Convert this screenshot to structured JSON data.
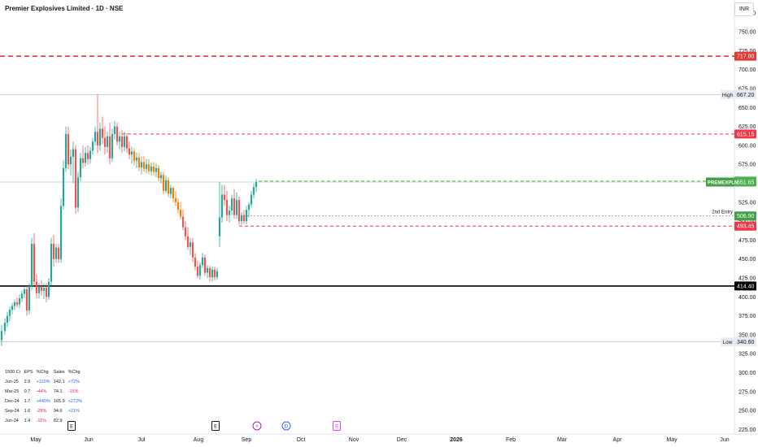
{
  "header": {
    "title": "Premier Explosives Limited · 1D · NSE",
    "currency": "INR"
  },
  "fundamentals": {
    "headers": [
      "1500 Cr",
      "EPS",
      "%Chg",
      "Sales",
      "%Chg"
    ],
    "rows": [
      {
        "period": "Jun-25",
        "eps": "2.9",
        "eps_chg": "+110%",
        "sales": "142.1",
        "sales_chg": "+72%"
      },
      {
        "period": "Mar-25",
        "eps": "0.7",
        "eps_chg": "-44%",
        "sales": "74.1",
        "sales_chg": "-15%"
      },
      {
        "period": "Dec-24",
        "eps": "1.7",
        "eps_chg": "+440%",
        "sales": "165.9",
        "sales_chg": "+272%"
      },
      {
        "period": "Sep-24",
        "eps": "1.6",
        "eps_chg": "-28%",
        "sales": "94.6",
        "sales_chg": "+21%"
      },
      {
        "period": "Jun-24",
        "eps": "1.4",
        "eps_chg": "-11%",
        "sales": "82.9",
        "sales_chg": ""
      }
    ]
  },
  "chart_data": {
    "type": "candlestick",
    "title": "Premier Explosives Limited · 1D · NSE",
    "ylim": [
      219,
      792
    ],
    "y_ticks": [
      225,
      250,
      275,
      300,
      325,
      350,
      375,
      400,
      425,
      450,
      475,
      500,
      525,
      550,
      575,
      600,
      625,
      650,
      675,
      700,
      725,
      750,
      775
    ],
    "x_ticks": [
      {
        "label": "May",
        "x": 44
      },
      {
        "label": "Jun",
        "x": 109
      },
      {
        "label": "Jul",
        "x": 174
      },
      {
        "label": "Aug",
        "x": 244
      },
      {
        "label": "Sep",
        "x": 303
      },
      {
        "label": "Oct",
        "x": 370
      },
      {
        "label": "Nov",
        "x": 435
      },
      {
        "label": "Dec",
        "x": 494
      },
      {
        "label": "2026",
        "x": 561
      },
      {
        "label": "Feb",
        "x": 628
      },
      {
        "label": "Mar",
        "x": 691
      },
      {
        "label": "Apr",
        "x": 759
      },
      {
        "label": "May",
        "x": 826
      },
      {
        "label": "Jun",
        "x": 891
      }
    ],
    "levels": [
      {
        "label": "717.80",
        "value": 717.8,
        "color": "#e53935",
        "style": "dashed-thick"
      },
      {
        "label": "667.20",
        "value": 667.2,
        "color": "#9598a1",
        "style": "solid-thin",
        "tag": "High"
      },
      {
        "label": "615.15",
        "value": 615.15,
        "color": "#f23645",
        "style": "dashed",
        "start": 150
      },
      {
        "label": "552.90",
        "value": 552.9,
        "color": "#4caf50",
        "style": "dashed",
        "start": 318
      },
      {
        "label": "551.65",
        "value": 551.65,
        "color": "#4caf50",
        "style": "solid-thin",
        "tag": "PREMEXPLN"
      },
      {
        "label": "506.90",
        "value": 506.9,
        "color": "#9598a1",
        "style": "dotted",
        "start": 300,
        "tag": "2nd Entry"
      },
      {
        "label": "493.45",
        "value": 493.45,
        "color": "#f23645",
        "style": "dashed",
        "start": 294
      },
      {
        "label": "414.40",
        "value": 414.4,
        "color": "#000000",
        "style": "solid-thick"
      },
      {
        "label": "340.60",
        "value": 340.6,
        "color": "#9598a1",
        "style": "solid-thin",
        "tag": "Low"
      }
    ],
    "candles": [
      {
        "x": 2,
        "o": 343,
        "h": 363,
        "l": 335,
        "c": 355
      },
      {
        "x": 6,
        "o": 355,
        "h": 372,
        "l": 350,
        "c": 366
      },
      {
        "x": 9,
        "o": 366,
        "h": 380,
        "l": 360,
        "c": 375
      },
      {
        "x": 12,
        "o": 375,
        "h": 387,
        "l": 368,
        "c": 383
      },
      {
        "x": 15,
        "o": 383,
        "h": 392,
        "l": 377,
        "c": 388
      },
      {
        "x": 18,
        "o": 388,
        "h": 397,
        "l": 383,
        "c": 393
      },
      {
        "x": 21,
        "o": 393,
        "h": 399,
        "l": 386,
        "c": 390
      },
      {
        "x": 24,
        "o": 390,
        "h": 403,
        "l": 385,
        "c": 398
      },
      {
        "x": 27,
        "o": 398,
        "h": 408,
        "l": 393,
        "c": 404
      },
      {
        "x": 30,
        "o": 404,
        "h": 413,
        "l": 398,
        "c": 410
      },
      {
        "x": 33,
        "o": 410,
        "h": 414,
        "l": 375,
        "c": 382
      },
      {
        "x": 36,
        "o": 382,
        "h": 418,
        "l": 377,
        "c": 414
      },
      {
        "x": 39,
        "o": 414,
        "h": 478,
        "l": 410,
        "c": 470
      },
      {
        "x": 42,
        "o": 470,
        "h": 484,
        "l": 415,
        "c": 420
      },
      {
        "x": 45,
        "o": 420,
        "h": 430,
        "l": 398,
        "c": 405
      },
      {
        "x": 48,
        "o": 405,
        "h": 418,
        "l": 398,
        "c": 414
      },
      {
        "x": 51,
        "o": 414,
        "h": 422,
        "l": 402,
        "c": 408
      },
      {
        "x": 54,
        "o": 408,
        "h": 418,
        "l": 397,
        "c": 412
      },
      {
        "x": 57,
        "o": 412,
        "h": 418,
        "l": 393,
        "c": 400
      },
      {
        "x": 60,
        "o": 400,
        "h": 425,
        "l": 396,
        "c": 420
      },
      {
        "x": 63,
        "o": 420,
        "h": 478,
        "l": 415,
        "c": 470
      },
      {
        "x": 66,
        "o": 470,
        "h": 482,
        "l": 440,
        "c": 450
      },
      {
        "x": 69,
        "o": 450,
        "h": 470,
        "l": 445,
        "c": 465
      },
      {
        "x": 72,
        "o": 465,
        "h": 470,
        "l": 445,
        "c": 450
      },
      {
        "x": 75,
        "o": 450,
        "h": 530,
        "l": 445,
        "c": 520
      },
      {
        "x": 78,
        "o": 520,
        "h": 580,
        "l": 515,
        "c": 570
      },
      {
        "x": 81,
        "o": 570,
        "h": 625,
        "l": 565,
        "c": 615
      },
      {
        "x": 84,
        "o": 615,
        "h": 625,
        "l": 568,
        "c": 575
      },
      {
        "x": 87,
        "o": 575,
        "h": 595,
        "l": 560,
        "c": 585
      },
      {
        "x": 90,
        "o": 585,
        "h": 605,
        "l": 550,
        "c": 595
      },
      {
        "x": 93,
        "o": 595,
        "h": 600,
        "l": 510,
        "c": 518
      },
      {
        "x": 96,
        "o": 518,
        "h": 565,
        "l": 512,
        "c": 558
      },
      {
        "x": 99,
        "o": 558,
        "h": 590,
        "l": 553,
        "c": 583
      },
      {
        "x": 102,
        "o": 583,
        "h": 600,
        "l": 570,
        "c": 577
      },
      {
        "x": 105,
        "o": 577,
        "h": 598,
        "l": 572,
        "c": 590
      },
      {
        "x": 108,
        "o": 590,
        "h": 600,
        "l": 575,
        "c": 582
      },
      {
        "x": 111,
        "o": 582,
        "h": 598,
        "l": 576,
        "c": 593
      },
      {
        "x": 114,
        "o": 593,
        "h": 610,
        "l": 588,
        "c": 605
      },
      {
        "x": 117,
        "o": 605,
        "h": 625,
        "l": 600,
        "c": 618
      },
      {
        "x": 120,
        "o": 618,
        "h": 667,
        "l": 590,
        "c": 600
      },
      {
        "x": 123,
        "o": 600,
        "h": 630,
        "l": 593,
        "c": 622
      },
      {
        "x": 126,
        "o": 622,
        "h": 638,
        "l": 602,
        "c": 610
      },
      {
        "x": 129,
        "o": 610,
        "h": 625,
        "l": 588,
        "c": 598
      },
      {
        "x": 132,
        "o": 598,
        "h": 618,
        "l": 590,
        "c": 612
      },
      {
        "x": 135,
        "o": 612,
        "h": 630,
        "l": 575,
        "c": 583
      },
      {
        "x": 138,
        "o": 583,
        "h": 622,
        "l": 578,
        "c": 615
      },
      {
        "x": 141,
        "o": 615,
        "h": 632,
        "l": 608,
        "c": 625
      },
      {
        "x": 144,
        "o": 625,
        "h": 630,
        "l": 600,
        "c": 605
      },
      {
        "x": 147,
        "o": 605,
        "h": 618,
        "l": 595,
        "c": 612
      },
      {
        "x": 150,
        "o": 612,
        "h": 620,
        "l": 590,
        "c": 598
      },
      {
        "x": 153,
        "o": 598,
        "h": 618,
        "l": 592,
        "c": 612
      },
      {
        "x": 156,
        "o": 612,
        "h": 616,
        "l": 590,
        "c": 596
      },
      {
        "x": 159,
        "o": 596,
        "h": 605,
        "l": 582,
        "c": 588
      },
      {
        "x": 162,
        "o": 588,
        "h": 598,
        "l": 576,
        "c": 592
      },
      {
        "x": 165,
        "o": 592,
        "h": 596,
        "l": 574,
        "c": 580
      },
      {
        "x": 168,
        "o": 580,
        "h": 590,
        "l": 570,
        "c": 584
      },
      {
        "x": 171,
        "o": 584,
        "h": 590,
        "l": 566,
        "c": 571
      },
      {
        "x": 174,
        "o": 571,
        "h": 585,
        "l": 562,
        "c": 578
      },
      {
        "x": 177,
        "o": 578,
        "h": 586,
        "l": 565,
        "c": 569
      },
      {
        "x": 180,
        "o": 569,
        "h": 582,
        "l": 563,
        "c": 575
      },
      {
        "x": 183,
        "o": 575,
        "h": 582,
        "l": 562,
        "c": 566
      },
      {
        "x": 186,
        "o": 566,
        "h": 578,
        "l": 560,
        "c": 572
      },
      {
        "x": 189,
        "o": 572,
        "h": 578,
        "l": 560,
        "c": 565
      },
      {
        "x": 192,
        "o": 565,
        "h": 576,
        "l": 558,
        "c": 570
      },
      {
        "x": 195,
        "o": 570,
        "h": 574,
        "l": 553,
        "c": 557
      },
      {
        "x": 198,
        "o": 557,
        "h": 565,
        "l": 550,
        "c": 561
      },
      {
        "x": 201,
        "o": 561,
        "h": 565,
        "l": 536,
        "c": 540
      },
      {
        "x": 204,
        "o": 540,
        "h": 560,
        "l": 537,
        "c": 554
      },
      {
        "x": 207,
        "o": 554,
        "h": 558,
        "l": 532,
        "c": 536
      },
      {
        "x": 210,
        "o": 536,
        "h": 548,
        "l": 530,
        "c": 544
      },
      {
        "x": 213,
        "o": 544,
        "h": 546,
        "l": 525,
        "c": 530
      },
      {
        "x": 216,
        "o": 530,
        "h": 540,
        "l": 520,
        "c": 525
      },
      {
        "x": 219,
        "o": 525,
        "h": 530,
        "l": 510,
        "c": 515
      },
      {
        "x": 222,
        "o": 515,
        "h": 525,
        "l": 502,
        "c": 506
      },
      {
        "x": 225,
        "o": 506,
        "h": 515,
        "l": 488,
        "c": 492
      },
      {
        "x": 228,
        "o": 492,
        "h": 500,
        "l": 475,
        "c": 480
      },
      {
        "x": 231,
        "o": 480,
        "h": 492,
        "l": 462,
        "c": 466
      },
      {
        "x": 234,
        "o": 466,
        "h": 478,
        "l": 455,
        "c": 472
      },
      {
        "x": 237,
        "o": 472,
        "h": 478,
        "l": 446,
        "c": 452
      },
      {
        "x": 240,
        "o": 452,
        "h": 458,
        "l": 435,
        "c": 440
      },
      {
        "x": 243,
        "o": 440,
        "h": 448,
        "l": 425,
        "c": 428
      },
      {
        "x": 246,
        "o": 428,
        "h": 446,
        "l": 423,
        "c": 442
      },
      {
        "x": 249,
        "o": 442,
        "h": 458,
        "l": 438,
        "c": 452
      },
      {
        "x": 252,
        "o": 452,
        "h": 456,
        "l": 428,
        "c": 432
      },
      {
        "x": 255,
        "o": 432,
        "h": 442,
        "l": 425,
        "c": 438
      },
      {
        "x": 258,
        "o": 438,
        "h": 441,
        "l": 420,
        "c": 426
      },
      {
        "x": 261,
        "o": 426,
        "h": 440,
        "l": 420,
        "c": 436
      },
      {
        "x": 264,
        "o": 436,
        "h": 440,
        "l": 422,
        "c": 426
      },
      {
        "x": 267,
        "o": 426,
        "h": 438,
        "l": 423,
        "c": 434
      },
      {
        "x": 270,
        "o": 480,
        "h": 552,
        "l": 466,
        "c": 505
      },
      {
        "x": 273,
        "o": 505,
        "h": 548,
        "l": 498,
        "c": 535
      },
      {
        "x": 276,
        "o": 535,
        "h": 548,
        "l": 520,
        "c": 528
      },
      {
        "x": 279,
        "o": 528,
        "h": 540,
        "l": 500,
        "c": 508
      },
      {
        "x": 282,
        "o": 508,
        "h": 520,
        "l": 498,
        "c": 514
      },
      {
        "x": 285,
        "o": 514,
        "h": 535,
        "l": 508,
        "c": 530
      },
      {
        "x": 288,
        "o": 530,
        "h": 542,
        "l": 503,
        "c": 508
      },
      {
        "x": 291,
        "o": 508,
        "h": 538,
        "l": 503,
        "c": 528
      },
      {
        "x": 294,
        "o": 528,
        "h": 532,
        "l": 495,
        "c": 500
      },
      {
        "x": 297,
        "o": 500,
        "h": 512,
        "l": 495,
        "c": 508
      },
      {
        "x": 300,
        "o": 508,
        "h": 515,
        "l": 496,
        "c": 500
      },
      {
        "x": 303,
        "o": 500,
        "h": 520,
        "l": 496,
        "c": 515
      },
      {
        "x": 306,
        "o": 515,
        "h": 525,
        "l": 505,
        "c": 522
      },
      {
        "x": 309,
        "o": 522,
        "h": 540,
        "l": 518,
        "c": 535
      },
      {
        "x": 312,
        "o": 535,
        "h": 550,
        "l": 530,
        "c": 545
      },
      {
        "x": 315,
        "o": 545,
        "h": 556,
        "l": 538,
        "c": 552
      }
    ],
    "candle_colors": {
      "up": "#26a69a",
      "down": "#ef5350",
      "down_mid": "#f57c00"
    },
    "events": [
      {
        "type": "earnings",
        "label": "E",
        "x": 88,
        "color": "#131722"
      },
      {
        "type": "earnings",
        "label": "E",
        "x": 265,
        "color": "#131722"
      },
      {
        "type": "split",
        "label": "⚡",
        "x": 316,
        "color": "#9c27b0"
      },
      {
        "type": "dividend",
        "label": "D",
        "x": 352,
        "color": "#2962ff"
      },
      {
        "type": "earnings-future",
        "label": "E",
        "x": 414,
        "color": "#e040fb"
      }
    ]
  }
}
